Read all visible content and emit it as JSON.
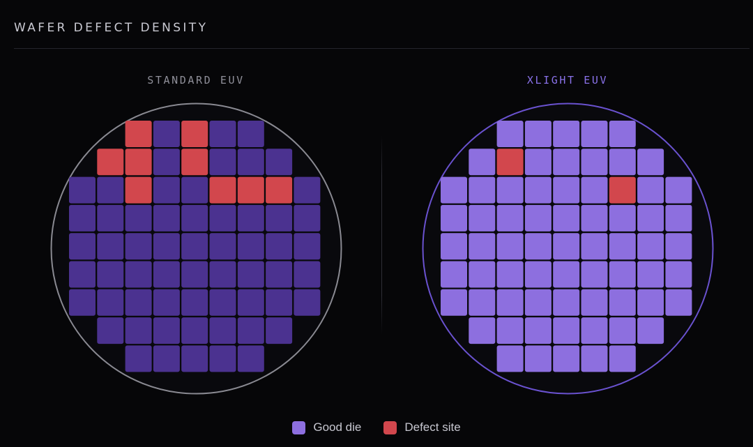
{
  "title": "WAFER DEFECT DENSITY",
  "colors": {
    "background": "#060608",
    "defect": "#d2474d",
    "standard_good": "#4b3290",
    "xlight_good": "#8d6fdf",
    "standard_outline": "#8a8a92",
    "xlight_outline": "#6a52d0"
  },
  "grid": {
    "rows": [
      [
        2,
        6
      ],
      [
        1,
        7
      ],
      [
        0,
        8
      ],
      [
        0,
        8
      ],
      [
        0,
        8
      ],
      [
        0,
        8
      ],
      [
        0,
        8
      ],
      [
        1,
        7
      ],
      [
        2,
        6
      ]
    ]
  },
  "wafers": [
    {
      "label": "STANDARD EUV",
      "good_color": "#4b3290",
      "outline_color": "#8a8a92",
      "defects": [
        [
          0,
          2
        ],
        [
          0,
          4
        ],
        [
          1,
          1
        ],
        [
          1,
          2
        ],
        [
          1,
          4
        ],
        [
          2,
          2
        ],
        [
          2,
          5
        ],
        [
          2,
          6
        ],
        [
          2,
          7
        ]
      ]
    },
    {
      "label": "XLIGHT EUV",
      "good_color": "#8d6fdf",
      "outline_color": "#6a52d0",
      "defects": [
        [
          1,
          2
        ],
        [
          2,
          6
        ]
      ]
    }
  ],
  "legend": [
    {
      "label": "Good die",
      "color": "#8d6fdf"
    },
    {
      "label": "Defect site",
      "color": "#d2474d"
    }
  ]
}
